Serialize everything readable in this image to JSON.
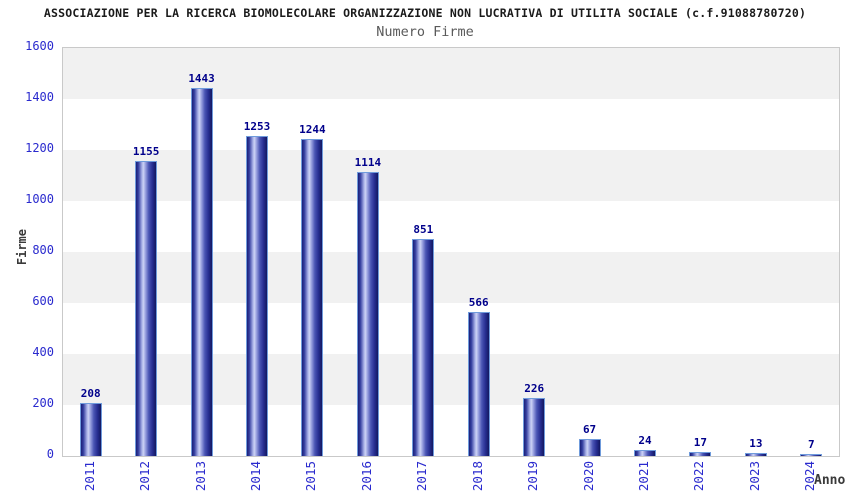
{
  "header": {
    "title": "ASSOCIAZIONE PER LA RICERCA BIOMOLECOLARE ORGANIZZAZIONE NON LUCRATIVA DI UTILITA SOCIALE (c.f.91088780720)",
    "subtitle": "Numero Firme"
  },
  "chart_data": {
    "type": "bar",
    "title": "Numero Firme",
    "xlabel": "Anno",
    "ylabel": "Firme",
    "categories": [
      "2011",
      "2012",
      "2013",
      "2014",
      "2015",
      "2016",
      "2017",
      "2018",
      "2019",
      "2020",
      "2021",
      "2022",
      "2023",
      "2024"
    ],
    "values": [
      208,
      1155,
      1443,
      1253,
      1244,
      1114,
      851,
      566,
      226,
      67,
      24,
      17,
      13,
      7
    ],
    "ylim": [
      0,
      1600
    ],
    "y_ticks": [
      0,
      200,
      400,
      600,
      800,
      1000,
      1200,
      1400,
      1600
    ],
    "grid": "alternating horizontal gray/white bands every 200 units",
    "legend": "none",
    "value_labels": "shown above each bar"
  },
  "colors": {
    "bar_dark": "#1b1f78",
    "bar_light": "#cdd3f5",
    "bar_border": "#6f9bdc",
    "value_label": "#00008b",
    "axis_tick_label": "#2a2ace",
    "axis_title": "#3a3a3a",
    "title_text": "#1a1a1a",
    "subtitle_text": "#5a5a5a",
    "band_gray": "#f1f1f1",
    "plot_border": "#c9c9c9",
    "background": "#ffffff"
  }
}
